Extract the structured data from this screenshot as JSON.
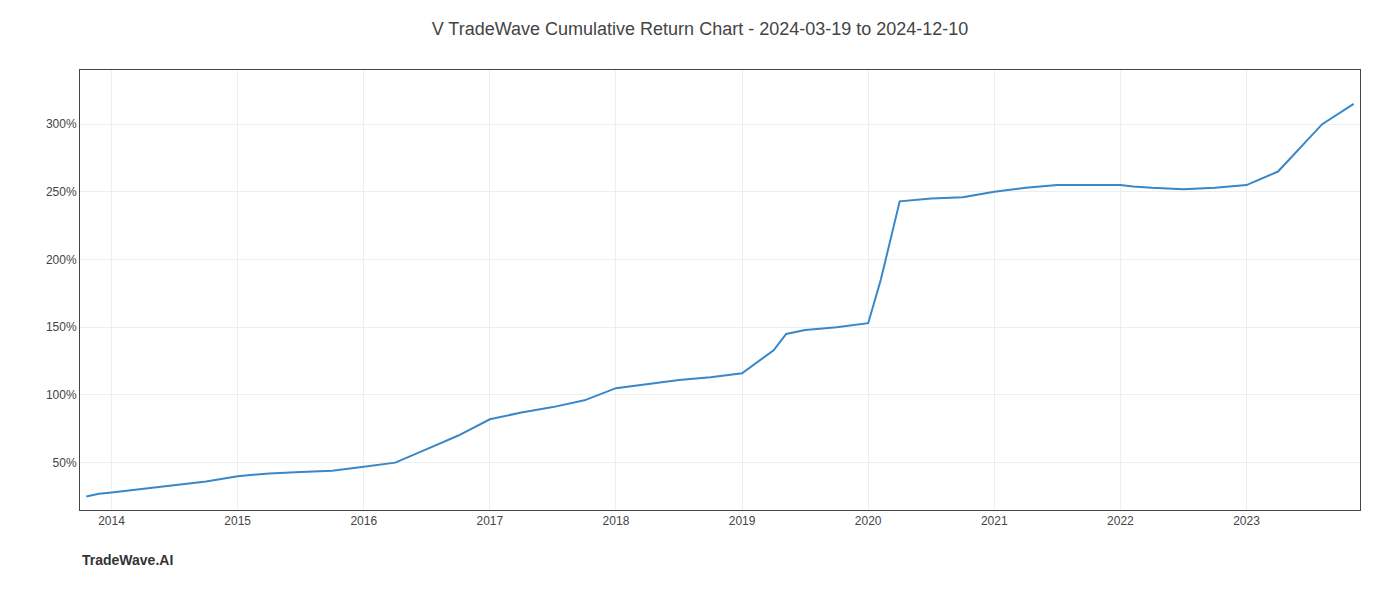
{
  "chart_data": {
    "type": "line",
    "title": "V TradeWave Cumulative Return Chart - 2024-03-19 to 2024-12-10",
    "annotations": [
      "TradeWave.AI"
    ],
    "color": "#3a87c8",
    "grid": true,
    "x": [
      2013.8,
      2013.9,
      2014.0,
      2014.2,
      2014.5,
      2014.75,
      2015.0,
      2015.25,
      2015.5,
      2015.75,
      2016.0,
      2016.1,
      2016.25,
      2016.5,
      2016.75,
      2017.0,
      2017.25,
      2017.5,
      2017.75,
      2018.0,
      2018.25,
      2018.5,
      2018.75,
      2019.0,
      2019.25,
      2019.35,
      2019.5,
      2019.75,
      2020.0,
      2020.1,
      2020.25,
      2020.5,
      2020.75,
      2021.0,
      2021.25,
      2021.5,
      2021.75,
      2022.0,
      2022.1,
      2022.25,
      2022.5,
      2022.75,
      2023.0,
      2023.25,
      2023.6,
      2023.85
    ],
    "values": [
      25,
      27,
      28,
      30,
      33,
      36,
      40,
      42,
      43,
      44,
      47,
      48,
      50,
      60,
      70,
      82,
      87,
      91,
      96,
      105,
      108,
      111,
      113,
      116,
      133,
      145,
      148,
      150,
      153,
      185,
      243,
      245,
      246,
      250,
      253,
      255,
      255,
      255,
      254,
      253,
      252,
      253,
      255,
      265,
      300,
      315
    ],
    "xlim": [
      2013.75,
      2023.9
    ],
    "xticks": [
      2014,
      2015,
      2016,
      2017,
      2018,
      2019,
      2020,
      2021,
      2022,
      2023
    ],
    "ylim": [
      15,
      340
    ],
    "yticks": [
      {
        "value": 50,
        "label": "50%"
      },
      {
        "value": 100,
        "label": "100%"
      },
      {
        "value": 150,
        "label": "150%"
      },
      {
        "value": 200,
        "label": "200%"
      },
      {
        "value": 250,
        "label": "250%"
      },
      {
        "value": 300,
        "label": "300%"
      }
    ]
  }
}
